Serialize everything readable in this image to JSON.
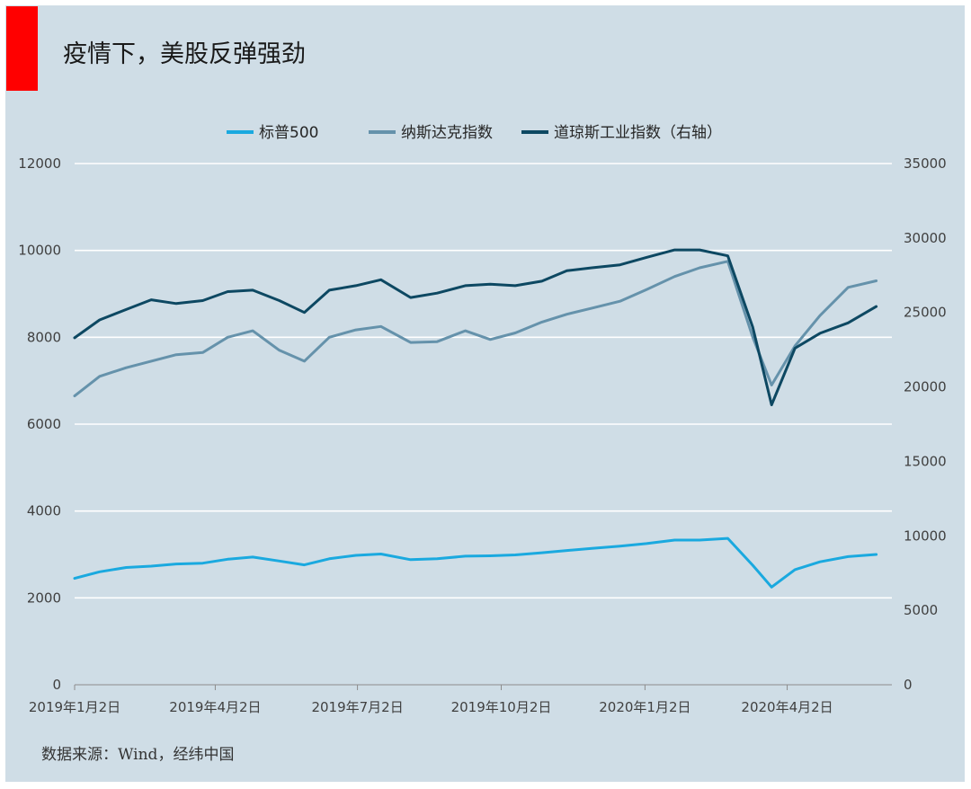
{
  "title": "疫情下，美股反弹强劲",
  "source": "数据来源：Wind，经纬中国",
  "colors": {
    "sp500": "#1aa9df",
    "nasdaq": "#6592ab",
    "dow": "#0d4862",
    "accent": "#ff0000",
    "background": "#cfdde6"
  },
  "chart_data": {
    "type": "line",
    "legend_position": "top-center",
    "grid": true,
    "x_dates": [
      "2019-01-02",
      "2019-01-18",
      "2019-02-04",
      "2019-02-20",
      "2019-03-08",
      "2019-03-25",
      "2019-04-10",
      "2019-04-26",
      "2019-05-13",
      "2019-05-29",
      "2019-06-14",
      "2019-07-01",
      "2019-07-17",
      "2019-08-05",
      "2019-08-22",
      "2019-09-09",
      "2019-09-25",
      "2019-10-11",
      "2019-10-28",
      "2019-11-13",
      "2019-11-29",
      "2019-12-17",
      "2020-01-03",
      "2020-01-21",
      "2020-02-06",
      "2020-02-24",
      "2020-03-11",
      "2020-03-23",
      "2020-04-07",
      "2020-04-23",
      "2020-05-11",
      "2020-05-29"
    ],
    "x_ticks": [
      "2019年1月2日",
      "2019年4月2日",
      "2019年7月2日",
      "2019年10月2日",
      "2020年1月2日",
      "2020年4月2日"
    ],
    "x_tick_dates": [
      "2019-01-02",
      "2019-04-02",
      "2019-07-02",
      "2019-10-02",
      "2020-01-02",
      "2020-04-02"
    ],
    "y_left": {
      "range": [
        0,
        12000
      ],
      "ticks": [
        "0",
        "2000",
        "4000",
        "6000",
        "8000",
        "10000",
        "12000"
      ]
    },
    "y_right": {
      "range": [
        0,
        35000
      ],
      "ticks": [
        "0",
        "5000",
        "10000",
        "15000",
        "20000",
        "25000",
        "30000",
        "35000"
      ]
    },
    "series": [
      {
        "name": "标普500",
        "axis": "left",
        "color_key": "sp500",
        "values": [
          2450,
          2600,
          2700,
          2730,
          2780,
          2800,
          2890,
          2940,
          2850,
          2760,
          2900,
          2980,
          3010,
          2880,
          2900,
          2960,
          2970,
          2990,
          3040,
          3090,
          3140,
          3190,
          3250,
          3330,
          3330,
          3370,
          2750,
          2250,
          2650,
          2830,
          2950,
          3000
        ]
      },
      {
        "name": "纳斯达克指数",
        "axis": "left",
        "color_key": "nasdaq",
        "values": [
          6650,
          7100,
          7300,
          7450,
          7600,
          7650,
          8000,
          8150,
          7700,
          7450,
          8000,
          8170,
          8250,
          7880,
          7900,
          8150,
          7950,
          8100,
          8350,
          8530,
          8670,
          8830,
          9100,
          9400,
          9600,
          9750,
          8000,
          6900,
          7800,
          8500,
          9150,
          9300
        ]
      },
      {
        "name": "道琼斯工业指数（右轴）",
        "axis": "right",
        "color_key": "dow",
        "values": [
          23300,
          24500,
          25200,
          25850,
          25600,
          25800,
          26400,
          26500,
          25800,
          25000,
          26500,
          26800,
          27200,
          26000,
          26300,
          26800,
          26900,
          26800,
          27100,
          27800,
          28000,
          28200,
          28700,
          29200,
          29200,
          28800,
          24000,
          18800,
          22600,
          23600,
          24300,
          25400
        ]
      }
    ]
  }
}
